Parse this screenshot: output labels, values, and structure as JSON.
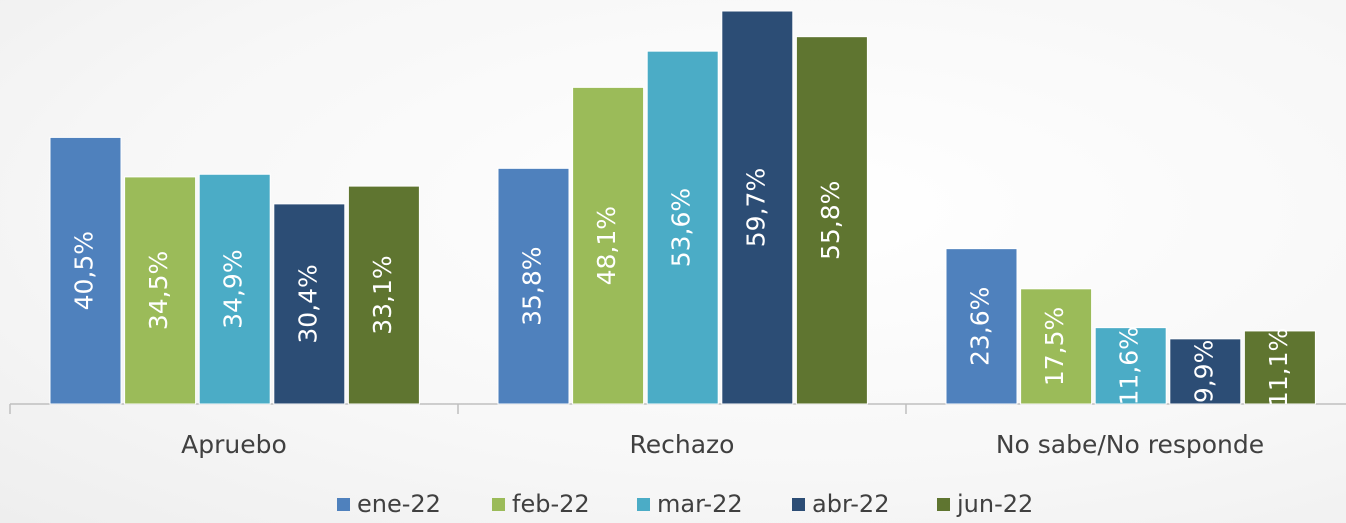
{
  "chart_data": {
    "type": "bar",
    "categories": [
      "Apruebo",
      "Rechazo",
      "No sabe/No responde"
    ],
    "series": [
      {
        "name": "ene-22",
        "color": "#4f81bd",
        "values": [
          40.5,
          35.8,
          23.6
        ],
        "value_labels": [
          "40,5%",
          "35,8%",
          "23,6%"
        ]
      },
      {
        "name": "feb-22",
        "color": "#9bbb59",
        "values": [
          34.5,
          48.1,
          17.5
        ],
        "value_labels": [
          "34,5%",
          "48,1%",
          "17,5%"
        ]
      },
      {
        "name": "mar-22",
        "color": "#4bacc6",
        "values": [
          34.9,
          53.6,
          11.6
        ],
        "value_labels": [
          "34,9%",
          "53,6%",
          "11,6%"
        ]
      },
      {
        "name": "abr-22",
        "color": "#2c4d75",
        "values": [
          30.4,
          59.7,
          9.9
        ],
        "value_labels": [
          "30,4%",
          "59,7%",
          "9,9%"
        ]
      },
      {
        "name": "jun-22",
        "color": "#5f7530",
        "values": [
          33.1,
          55.8,
          11.1
        ],
        "value_labels": [
          "33,1%",
          "55,8%",
          "11,1%"
        ]
      }
    ],
    "legend": "bottom"
  }
}
